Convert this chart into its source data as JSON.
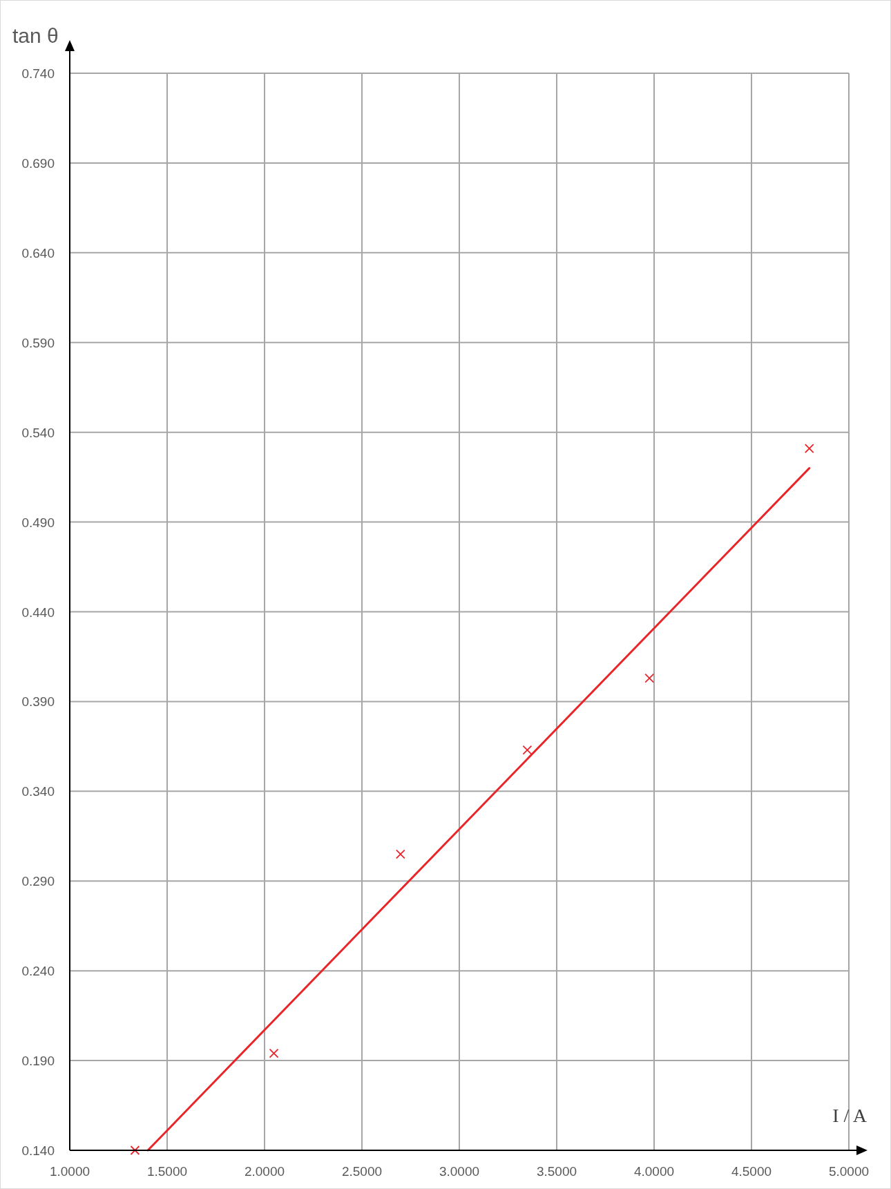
{
  "chart_data": {
    "type": "scatter",
    "xlabel": "I / A",
    "ylabel": "tan θ",
    "xlim": [
      1,
      5
    ],
    "ylim": [
      0.14,
      0.74
    ],
    "xticks": [
      {
        "value": 1,
        "label": "1.0000"
      },
      {
        "value": 1.5,
        "label": "1.5000"
      },
      {
        "value": 2,
        "label": "2.0000"
      },
      {
        "value": 2.5,
        "label": "2.5000"
      },
      {
        "value": 3,
        "label": "3.0000"
      },
      {
        "value": 3.5,
        "label": "3.5000"
      },
      {
        "value": 4,
        "label": "4.0000"
      },
      {
        "value": 4.5,
        "label": "4.5000"
      },
      {
        "value": 5,
        "label": "5.0000"
      }
    ],
    "yticks": [
      {
        "value": 0.14,
        "label": "0.140"
      },
      {
        "value": 0.19,
        "label": "0.190"
      },
      {
        "value": 0.24,
        "label": "0.240"
      },
      {
        "value": 0.29,
        "label": "0.290"
      },
      {
        "value": 0.34,
        "label": "0.340"
      },
      {
        "value": 0.39,
        "label": "0.390"
      },
      {
        "value": 0.44,
        "label": "0.440"
      },
      {
        "value": 0.49,
        "label": "0.490"
      },
      {
        "value": 0.54,
        "label": "0.540"
      },
      {
        "value": 0.59,
        "label": "0.590"
      },
      {
        "value": 0.64,
        "label": "0.640"
      },
      {
        "value": 0.69,
        "label": "0.690"
      },
      {
        "value": 0.74,
        "label": "0.740"
      }
    ],
    "grid": true,
    "series": [
      {
        "color": "#e8262a",
        "marker": "cross",
        "x": [
          1.335,
          2.048,
          2.698,
          3.349,
          3.976,
          4.797
        ],
        "values": [
          0.14,
          0.194,
          0.305,
          0.363,
          0.403,
          0.531
        ]
      },
      {
        "type": "line",
        "color": "#e8262a",
        "marker": "none",
        "line_style": "solid",
        "x": [
          1.401,
          4.797
        ],
        "values": [
          0.14,
          0.52
        ]
      }
    ]
  }
}
